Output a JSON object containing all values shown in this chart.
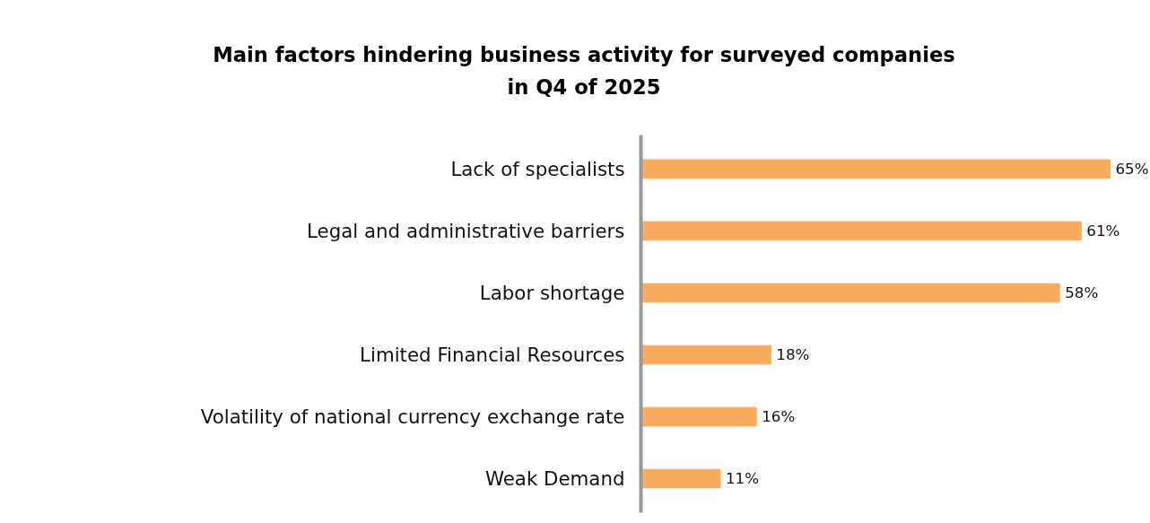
{
  "chart_data": {
    "type": "bar",
    "orientation": "horizontal",
    "title": "Main factors hindering business activity for surveyed companies\nin Q4 of 2025",
    "categories": [
      "Lack of specialists",
      "Legal and administrative barriers",
      "Labor shortage",
      "Limited Financial Resources",
      "Volatility of national currency exchange rate",
      "Weak Demand"
    ],
    "values": [
      65,
      61,
      58,
      18,
      16,
      11
    ],
    "value_labels": [
      "65%",
      "61%",
      "58%",
      "18%",
      "16%",
      "11%"
    ],
    "color": "#f9ac5d",
    "grid": false,
    "tick_labels": "y"
  }
}
